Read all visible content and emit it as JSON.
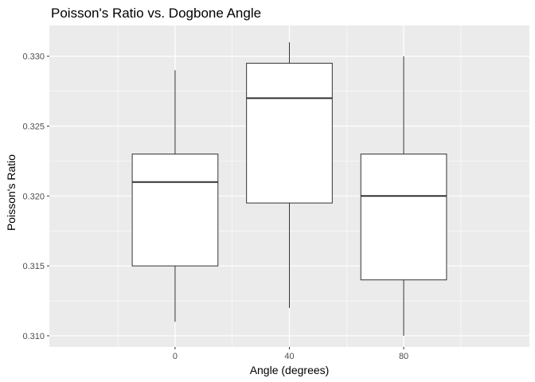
{
  "chart_data": {
    "type": "boxplot",
    "title": "Poisson's Ratio vs. Dogbone Angle",
    "xlabel": "Angle (degrees)",
    "ylabel": "Poisson's Ratio",
    "categories": [
      "0",
      "40",
      "80"
    ],
    "ylim": [
      0.3092,
      0.3322
    ],
    "yticks": [
      0.31,
      0.315,
      0.32,
      0.325,
      0.33
    ],
    "ytick_labels": [
      "0.310",
      "0.315",
      "0.320",
      "0.325",
      "0.330"
    ],
    "grid": true,
    "background": "#ebebeb",
    "grid_color": "#ffffff",
    "box_fill": "#ffffff",
    "box_stroke": "#333333",
    "boxes": [
      {
        "category": "0",
        "min": 0.311,
        "q1": 0.315,
        "median": 0.321,
        "q3": 0.323,
        "max": 0.329
      },
      {
        "category": "40",
        "min": 0.312,
        "q1": 0.3195,
        "median": 0.327,
        "q3": 0.3295,
        "max": 0.331
      },
      {
        "category": "80",
        "min": 0.31,
        "q1": 0.314,
        "median": 0.32,
        "q3": 0.323,
        "max": 0.33
      }
    ]
  }
}
